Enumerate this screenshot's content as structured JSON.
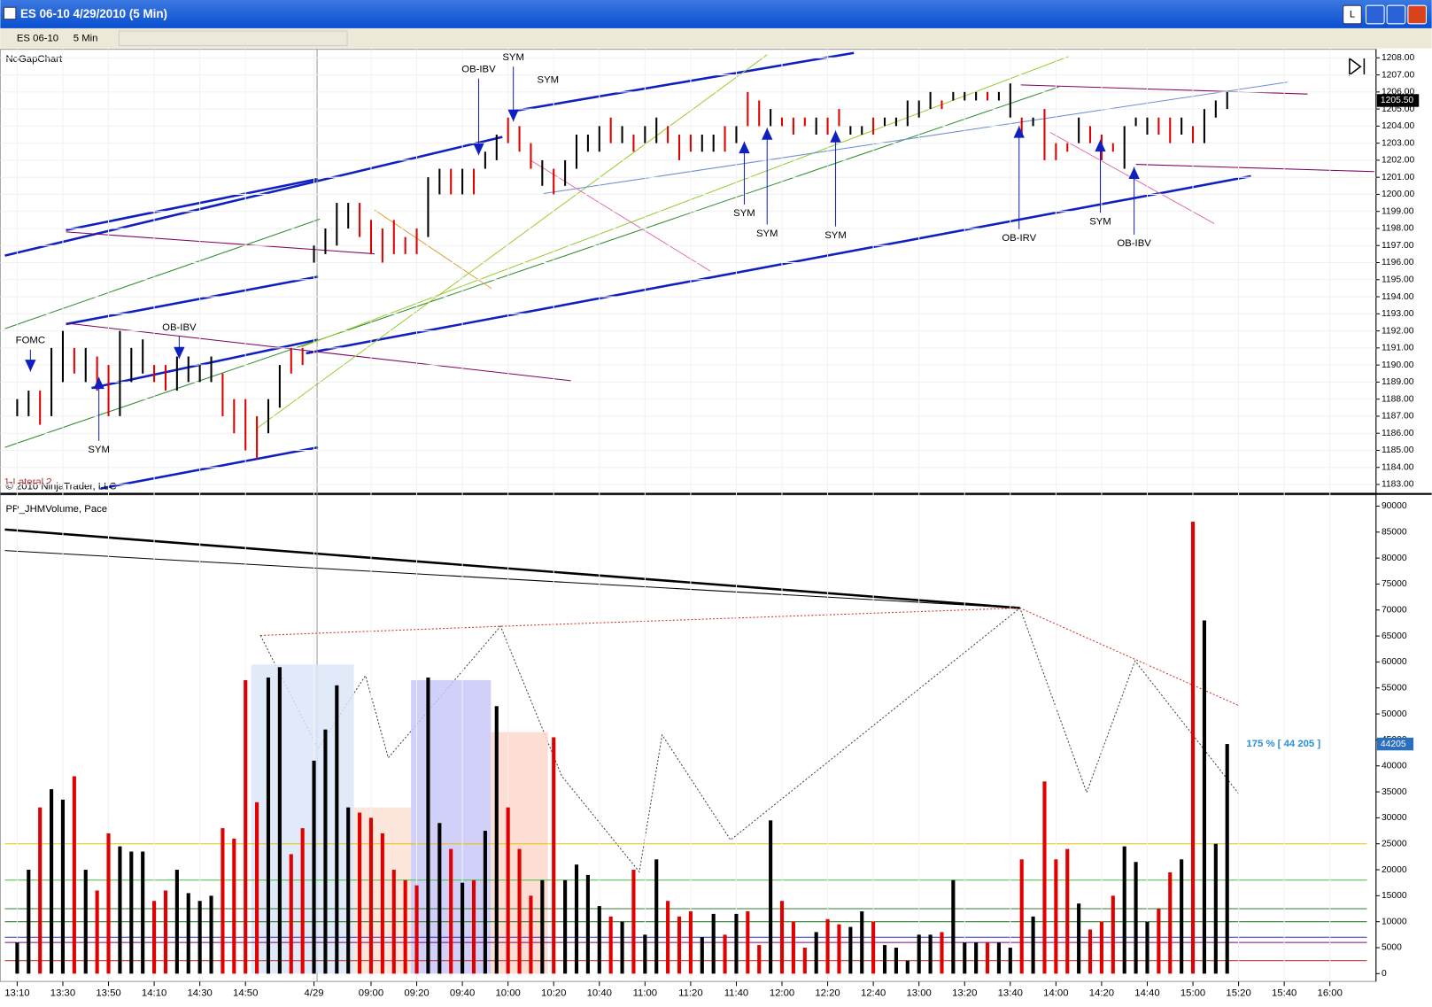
{
  "window": {
    "title": "ES 06-10  4/29/2010 (5 Min)",
    "buttons": [
      "L"
    ]
  },
  "toolbar": {
    "instrument": "ES 06-10",
    "period": "5 Min"
  },
  "chart_data": [
    {
      "type": "range_bar",
      "title": "NoGapChart",
      "copyright": "© 2010 NinjaTrader, LLC",
      "strategy_label": "1-Lateral 2",
      "last_price": {
        "value": 1205.5,
        "label": "1205.50"
      },
      "high": [
        1188,
        1188.5,
        1188.5,
        1191,
        1192,
        1191,
        1191,
        1190.5,
        1190,
        1192,
        1191,
        1191.5,
        1190,
        1190,
        1190.5,
        1190.5,
        1190,
        1190.5,
        1189.5,
        1188,
        1188,
        1187,
        1188,
        1190,
        1191,
        1191,
        1197,
        1198,
        1199.5,
        1199.5,
        1199.5,
        1198.5,
        1198,
        1198.5,
        1197.5,
        1198,
        1201,
        1201.5,
        1201.5,
        1201.5,
        1201.5,
        1202.5,
        1203.5,
        1204.5,
        1204,
        1203,
        1202,
        1201.5,
        1202,
        1203.5,
        1203.5,
        1204,
        1204.5,
        1204,
        1203.5,
        1204,
        1204.5,
        1204,
        1203.5,
        1203.5,
        1203.5,
        1203.5,
        1204,
        1204,
        1206,
        1205.5,
        1205,
        1204.5,
        1204.5,
        1204.5,
        1204.5,
        1204.5,
        1205,
        1204,
        1204,
        1204.5,
        1204.5,
        1204.5,
        1205.5,
        1205.5,
        1206,
        1205.5,
        1206,
        1206,
        1206,
        1206,
        1206,
        1206.5,
        1204.5,
        1204.5,
        1205,
        1203,
        1203,
        1204.5,
        1204,
        1203.5,
        1203,
        1204,
        1204.5,
        1204.5,
        1204.5,
        1204.5,
        1204.5,
        1204,
        1205,
        1205.5,
        1206
      ],
      "low": [
        1187,
        1187,
        1186.5,
        1187,
        1189,
        1189.5,
        1189,
        1188.5,
        1187,
        1187,
        1189,
        1189.5,
        1189,
        1188.5,
        1188.5,
        1189,
        1189,
        1189,
        1187,
        1186,
        1185,
        1184.5,
        1186,
        1187.5,
        1189.5,
        1190,
        1196,
        1196.5,
        1197,
        1198,
        1197.5,
        1196.5,
        1196,
        1196.5,
        1196.5,
        1196.5,
        1197.5,
        1200,
        1200,
        1200,
        1200,
        1201.5,
        1202,
        1203,
        1202.5,
        1201.5,
        1200.5,
        1200,
        1200.5,
        1201.5,
        1202.5,
        1202.5,
        1203,
        1203,
        1202.5,
        1203,
        1203,
        1203,
        1202,
        1202.5,
        1202.5,
        1202.5,
        1202.5,
        1203,
        1204,
        1204,
        1204,
        1204,
        1203.5,
        1204,
        1203.5,
        1203.5,
        1204,
        1203.5,
        1203.5,
        1203.5,
        1204,
        1204,
        1204,
        1204.5,
        1205,
        1205,
        1205.5,
        1205.5,
        1205.5,
        1205.5,
        1205.5,
        1204.5,
        1203.5,
        1204,
        1202,
        1202,
        1202.5,
        1203,
        1203,
        1202,
        1202.5,
        1201.5,
        1204,
        1203.5,
        1203.5,
        1203,
        1203.5,
        1203,
        1203,
        1204.5,
        1205
      ],
      "ylim": [
        1182.5,
        1208.5
      ],
      "yticks": [
        {
          "value": 1183,
          "label": "1183.00"
        },
        {
          "value": 1184,
          "label": "1184.00"
        },
        {
          "value": 1185,
          "label": "1185.00"
        },
        {
          "value": 1186,
          "label": "1186.00"
        },
        {
          "value": 1187,
          "label": "1187.00"
        },
        {
          "value": 1188,
          "label": "1188.00"
        },
        {
          "value": 1189,
          "label": "1189.00"
        },
        {
          "value": 1190,
          "label": "1190.00"
        },
        {
          "value": 1191,
          "label": "1191.00"
        },
        {
          "value": 1192,
          "label": "1192.00"
        },
        {
          "value": 1193,
          "label": "1193.00"
        },
        {
          "value": 1194,
          "label": "1194.00"
        },
        {
          "value": 1195,
          "label": "1195.00"
        },
        {
          "value": 1196,
          "label": "1196.00"
        },
        {
          "value": 1197,
          "label": "1197.00"
        },
        {
          "value": 1198,
          "label": "1198.00"
        },
        {
          "value": 1199,
          "label": "1199.00"
        },
        {
          "value": 1200,
          "label": "1200.00"
        },
        {
          "value": 1201,
          "label": "1201.00"
        },
        {
          "value": 1202,
          "label": "1202.00"
        },
        {
          "value": 1203,
          "label": "1203.00"
        },
        {
          "value": 1204,
          "label": "1204.00"
        },
        {
          "value": 1205,
          "label": "1205.00"
        },
        {
          "value": 1206,
          "label": "1206.00"
        },
        {
          "value": 1207,
          "label": "1207.00"
        },
        {
          "value": 1208,
          "label": "1208.00"
        }
      ],
      "annotations": [
        "OB-IBV",
        "SYM",
        "SYM",
        "SYM",
        "SYM",
        "SYM",
        "OB-IRV",
        "SYM",
        "OB-IBV",
        "OB-IBV",
        "FOMC",
        "SYM"
      ],
      "grid": true
    },
    {
      "type": "bar",
      "title": "PP_JHMVolume, Pace",
      "pace_label": "175 % [ 44 205 ]",
      "last_value": 44205,
      "values": [
        6000,
        20000,
        32000,
        35500,
        33500,
        38000,
        20000,
        16000,
        27000,
        24500,
        23500,
        23500,
        14000,
        16000,
        20000,
        15500,
        14000,
        15000,
        28000,
        26000,
        56500,
        33000,
        57000,
        59000,
        23000,
        28000,
        41000,
        47000,
        55500,
        32000,
        31000,
        30000,
        27000,
        20000,
        18000,
        17000,
        57000,
        29000,
        24000,
        17500,
        18000,
        27500,
        51500,
        32000,
        24000,
        15000,
        18000,
        45500,
        18000,
        21000,
        19000,
        13000,
        11000,
        10000,
        20000,
        7500,
        22000,
        14000,
        11000,
        12000,
        7000,
        11500,
        7500,
        11500,
        12000,
        5500,
        29500,
        14000,
        10000,
        5000,
        8000,
        10500,
        9500,
        9000,
        12000,
        10000,
        5500,
        5000,
        2500,
        7500,
        7500,
        8000,
        18000,
        6000,
        6000,
        6000,
        6000,
        5000,
        22000,
        11000,
        37000,
        22000,
        24000,
        13500,
        8500,
        10000,
        15000,
        24500,
        21500,
        10000,
        12500,
        19500,
        22000,
        87000,
        68000,
        25000,
        44205
      ],
      "colors": [
        "#000000",
        "#000000",
        "#e00000",
        "#000000",
        "#000000",
        "#e00000",
        "#000000",
        "#e00000",
        "#e00000",
        "#000000",
        "#000000",
        "#000000",
        "#e00000",
        "#e00000",
        "#000000",
        "#000000",
        "#000000",
        "#000000",
        "#e00000",
        "#e00000",
        "#e00000",
        "#e00000",
        "#000000",
        "#000000",
        "#e00000",
        "#e00000",
        "#000000",
        "#000000",
        "#000000",
        "#000000",
        "#e00000",
        "#e00000",
        "#e00000",
        "#e00000",
        "#e00000",
        "#e00000",
        "#000000",
        "#000000",
        "#e00000",
        "#000000",
        "#e00000",
        "#000000",
        "#000000",
        "#e00000",
        "#e00000",
        "#e00000",
        "#000000",
        "#e00000",
        "#000000",
        "#000000",
        "#000000",
        "#000000",
        "#e00000",
        "#000000",
        "#e00000",
        "#000000",
        "#000000",
        "#e00000",
        "#e00000",
        "#e00000",
        "#000000",
        "#000000",
        "#e00000",
        "#000000",
        "#e00000",
        "#e00000",
        "#000000",
        "#e00000",
        "#e00000",
        "#e00000",
        "#000000",
        "#e00000",
        "#e00000",
        "#000000",
        "#000000",
        "#e00000",
        "#000000",
        "#000000",
        "#000000",
        "#000000",
        "#000000",
        "#e00000",
        "#000000",
        "#000000",
        "#000000",
        "#e00000",
        "#000000",
        "#000000",
        "#e00000",
        "#000000",
        "#e00000",
        "#e00000",
        "#e00000",
        "#000000",
        "#e00000",
        "#e00000",
        "#e00000",
        "#000000",
        "#000000",
        "#000000",
        "#e00000",
        "#e00000",
        "#000000",
        "#e00000",
        "#000000",
        "#000000",
        "#000000"
      ],
      "reference_lines": [
        {
          "value": 25000,
          "color": "#e8c000"
        },
        {
          "value": 18000,
          "color": "#40c040"
        },
        {
          "value": 12500,
          "color": "#2e7d32"
        },
        {
          "value": 10000,
          "color": "#2e7d32"
        },
        {
          "value": 7000,
          "color": "#3030c0"
        },
        {
          "value": 6000,
          "color": "#800080"
        },
        {
          "value": 2500,
          "color": "#c04040"
        }
      ],
      "zones": [
        {
          "from": 21,
          "to": 30,
          "top": 59500,
          "color": "#dbe6f8"
        },
        {
          "from": 30,
          "to": 35,
          "top": 32000,
          "color": "#fde3d6"
        },
        {
          "from": 35,
          "to": 42,
          "top": 56500,
          "color": "#c8c8f8"
        },
        {
          "from": 42,
          "to": 47,
          "top": 46500,
          "color": "#fbd8cc"
        }
      ],
      "ylim": [
        -1500,
        92000
      ],
      "yticks": [
        0,
        5000,
        10000,
        15000,
        20000,
        25000,
        30000,
        35000,
        40000,
        45000,
        50000,
        55000,
        60000,
        65000,
        70000,
        75000,
        80000,
        85000,
        90000
      ],
      "xlim": [
        -1,
        118
      ],
      "xticks": [
        {
          "value": 0,
          "label": "13:10"
        },
        {
          "value": 4,
          "label": "13:30"
        },
        {
          "value": 8,
          "label": "13:50"
        },
        {
          "value": 12,
          "label": "14:10"
        },
        {
          "value": 16,
          "label": "14:30"
        },
        {
          "value": 20,
          "label": "14:50"
        },
        {
          "value": 26,
          "label": "4/29"
        },
        {
          "value": 31,
          "label": "09:00"
        },
        {
          "value": 35,
          "label": "09:20"
        },
        {
          "value": 39,
          "label": "09:40"
        },
        {
          "value": 43,
          "label": "10:00"
        },
        {
          "value": 47,
          "label": "10:20"
        },
        {
          "value": 51,
          "label": "10:40"
        },
        {
          "value": 55,
          "label": "11:00"
        },
        {
          "value": 59,
          "label": "11:20"
        },
        {
          "value": 63,
          "label": "11:40"
        },
        {
          "value": 67,
          "label": "12:00"
        },
        {
          "value": 71,
          "label": "12:20"
        },
        {
          "value": 75,
          "label": "12:40"
        },
        {
          "value": 79,
          "label": "13:00"
        },
        {
          "value": 83,
          "label": "13:20"
        },
        {
          "value": 87,
          "label": "13:40"
        },
        {
          "value": 91,
          "label": "14:00"
        },
        {
          "value": 95,
          "label": "14:20"
        },
        {
          "value": 99,
          "label": "14:40"
        },
        {
          "value": 103,
          "label": "15:00"
        },
        {
          "value": 107,
          "label": "15:20"
        },
        {
          "value": 111,
          "label": "15:40"
        },
        {
          "value": 115,
          "label": "16:00"
        }
      ]
    }
  ]
}
